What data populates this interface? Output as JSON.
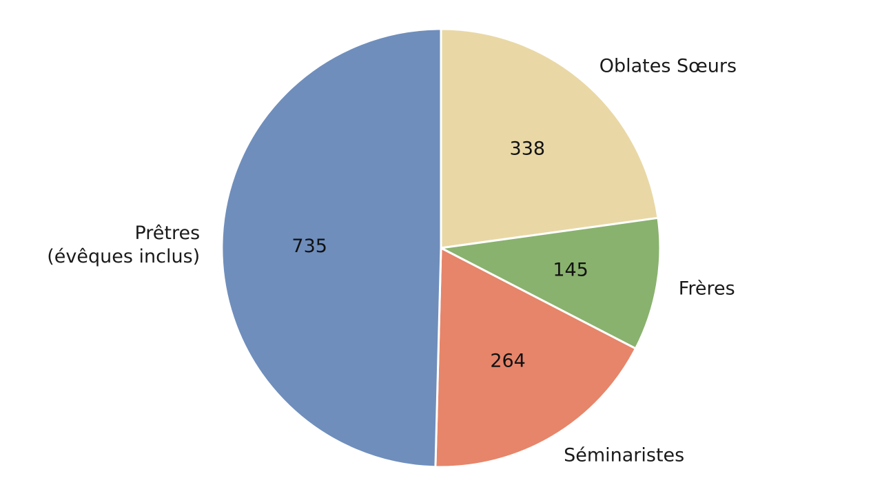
{
  "chart_data": {
    "type": "pie",
    "start_angle_deg": 90,
    "direction": "clockwise",
    "data_labels": "counts",
    "slices": [
      {
        "label": "Oblates Sœurs",
        "value": 338,
        "color": "#E9D8A6"
      },
      {
        "label": "Frères",
        "value": 145,
        "color": "#89B26E"
      },
      {
        "label": "Séminaristes",
        "value": 264,
        "color": "#E6856A"
      },
      {
        "label": "Prêtres\n(évêques inclus)",
        "value": 735,
        "color": "#6F8EBC"
      }
    ]
  }
}
